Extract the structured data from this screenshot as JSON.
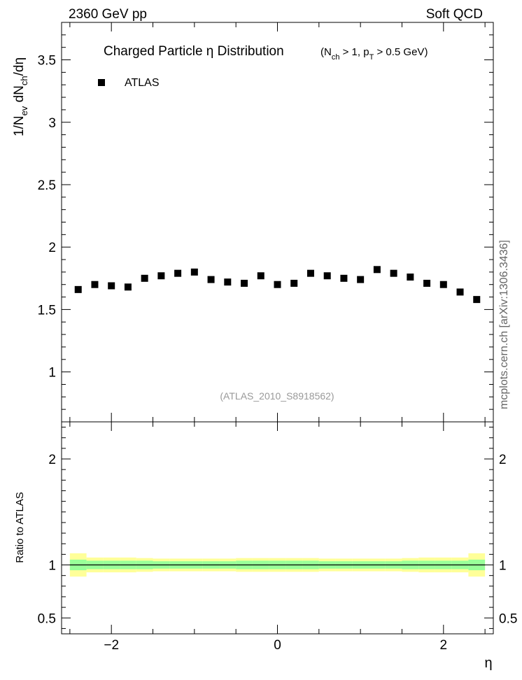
{
  "header": {
    "left": "2360 GeV pp",
    "right": "Soft QCD"
  },
  "side_label": "mcplots.cern.ch [arXiv:1306.3436]",
  "chart_data": [
    {
      "type": "scatter",
      "title": {
        "main": "Charged Particle  η Distribution",
        "sub": "(N",
        "sub_ch": "ch",
        "sub_mid": " > 1, p",
        "sub_T": "T",
        "sub_end": " > 0.5 GeV)"
      },
      "ylabel": {
        "a": "1/N",
        "a_sub": "ev",
        "b": " dN",
        "b_sub": "ch",
        "c": "/dη"
      },
      "xlim": [
        -2.6,
        2.6
      ],
      "ylim": [
        0.6,
        3.8
      ],
      "yticks": [
        {
          "v": 1,
          "label": "1"
        },
        {
          "v": 1.5,
          "label": "1.5"
        },
        {
          "v": 2,
          "label": "2"
        },
        {
          "v": 2.5,
          "label": "2.5"
        },
        {
          "v": 3,
          "label": "3"
        },
        {
          "v": 3.5,
          "label": "3.5"
        }
      ],
      "legend": {
        "label": "ATLAS",
        "position": "top-left"
      },
      "watermark": "(ATLAS_2010_S8918562)",
      "series": [
        {
          "name": "ATLAS",
          "color": "#000000",
          "x": [
            -2.4,
            -2.2,
            -2.0,
            -1.8,
            -1.6,
            -1.4,
            -1.2,
            -1.0,
            -0.8,
            -0.6,
            -0.4,
            -0.2,
            0.0,
            0.2,
            0.4,
            0.6,
            0.8,
            1.0,
            1.2,
            1.4,
            1.6,
            1.8,
            2.0,
            2.2,
            2.4
          ],
          "y": [
            1.66,
            1.7,
            1.69,
            1.68,
            1.75,
            1.77,
            1.79,
            1.8,
            1.74,
            1.72,
            1.71,
            1.77,
            1.7,
            1.71,
            1.79,
            1.77,
            1.75,
            1.74,
            1.82,
            1.79,
            1.76,
            1.71,
            1.7,
            1.64,
            1.58
          ]
        }
      ]
    },
    {
      "type": "area",
      "ylabel": "Ratio to ATLAS",
      "xlabel": "η",
      "xlim": [
        -2.6,
        2.6
      ],
      "ylim": [
        0.35,
        2.35
      ],
      "xticks": [
        {
          "v": -2,
          "label": "−2"
        },
        {
          "v": 0,
          "label": "0"
        },
        {
          "v": 2,
          "label": "2"
        }
      ],
      "yticks": [
        {
          "v": 0.5,
          "label": "0.5"
        },
        {
          "v": 1,
          "label": "1"
        },
        {
          "v": 2,
          "label": "2"
        }
      ],
      "band_colors": {
        "outer": "#ffff99",
        "inner": "#99ff99",
        "line": "#000000"
      },
      "bins": [
        {
          "lo": -2.5,
          "hi": -2.3,
          "inner": [
            0.95,
            1.05
          ],
          "outer": [
            0.89,
            1.11
          ]
        },
        {
          "lo": -2.3,
          "hi": -2.1,
          "inner": [
            0.96,
            1.04
          ],
          "outer": [
            0.93,
            1.07
          ]
        },
        {
          "lo": -2.1,
          "hi": -1.9,
          "inner": [
            0.96,
            1.04
          ],
          "outer": [
            0.93,
            1.07
          ]
        },
        {
          "lo": -1.9,
          "hi": -1.7,
          "inner": [
            0.96,
            1.04
          ],
          "outer": [
            0.93,
            1.07
          ]
        },
        {
          "lo": -1.7,
          "hi": -1.5,
          "inner": [
            0.96,
            1.04
          ],
          "outer": [
            0.935,
            1.065
          ]
        },
        {
          "lo": -1.5,
          "hi": -1.3,
          "inner": [
            0.965,
            1.035
          ],
          "outer": [
            0.94,
            1.06
          ]
        },
        {
          "lo": -1.3,
          "hi": -1.1,
          "inner": [
            0.965,
            1.035
          ],
          "outer": [
            0.94,
            1.06
          ]
        },
        {
          "lo": -1.1,
          "hi": -0.9,
          "inner": [
            0.965,
            1.035
          ],
          "outer": [
            0.94,
            1.06
          ]
        },
        {
          "lo": -0.9,
          "hi": -0.7,
          "inner": [
            0.965,
            1.035
          ],
          "outer": [
            0.94,
            1.06
          ]
        },
        {
          "lo": -0.7,
          "hi": -0.5,
          "inner": [
            0.965,
            1.035
          ],
          "outer": [
            0.94,
            1.06
          ]
        },
        {
          "lo": -0.5,
          "hi": -0.3,
          "inner": [
            0.96,
            1.04
          ],
          "outer": [
            0.935,
            1.065
          ]
        },
        {
          "lo": -0.3,
          "hi": -0.1,
          "inner": [
            0.96,
            1.04
          ],
          "outer": [
            0.935,
            1.065
          ]
        },
        {
          "lo": -0.1,
          "hi": 0.1,
          "inner": [
            0.96,
            1.04
          ],
          "outer": [
            0.935,
            1.065
          ]
        },
        {
          "lo": 0.1,
          "hi": 0.3,
          "inner": [
            0.96,
            1.04
          ],
          "outer": [
            0.935,
            1.065
          ]
        },
        {
          "lo": 0.3,
          "hi": 0.5,
          "inner": [
            0.96,
            1.04
          ],
          "outer": [
            0.935,
            1.065
          ]
        },
        {
          "lo": 0.5,
          "hi": 0.7,
          "inner": [
            0.965,
            1.035
          ],
          "outer": [
            0.94,
            1.06
          ]
        },
        {
          "lo": 0.7,
          "hi": 0.9,
          "inner": [
            0.965,
            1.035
          ],
          "outer": [
            0.94,
            1.06
          ]
        },
        {
          "lo": 0.9,
          "hi": 1.1,
          "inner": [
            0.965,
            1.035
          ],
          "outer": [
            0.94,
            1.06
          ]
        },
        {
          "lo": 1.1,
          "hi": 1.3,
          "inner": [
            0.965,
            1.035
          ],
          "outer": [
            0.94,
            1.06
          ]
        },
        {
          "lo": 1.3,
          "hi": 1.5,
          "inner": [
            0.965,
            1.035
          ],
          "outer": [
            0.94,
            1.06
          ]
        },
        {
          "lo": 1.5,
          "hi": 1.7,
          "inner": [
            0.96,
            1.04
          ],
          "outer": [
            0.935,
            1.065
          ]
        },
        {
          "lo": 1.7,
          "hi": 1.9,
          "inner": [
            0.96,
            1.04
          ],
          "outer": [
            0.93,
            1.07
          ]
        },
        {
          "lo": 1.9,
          "hi": 2.1,
          "inner": [
            0.96,
            1.04
          ],
          "outer": [
            0.93,
            1.07
          ]
        },
        {
          "lo": 2.1,
          "hi": 2.3,
          "inner": [
            0.96,
            1.04
          ],
          "outer": [
            0.93,
            1.07
          ]
        },
        {
          "lo": 2.3,
          "hi": 2.5,
          "inner": [
            0.95,
            1.05
          ],
          "outer": [
            0.89,
            1.11
          ]
        }
      ]
    }
  ]
}
